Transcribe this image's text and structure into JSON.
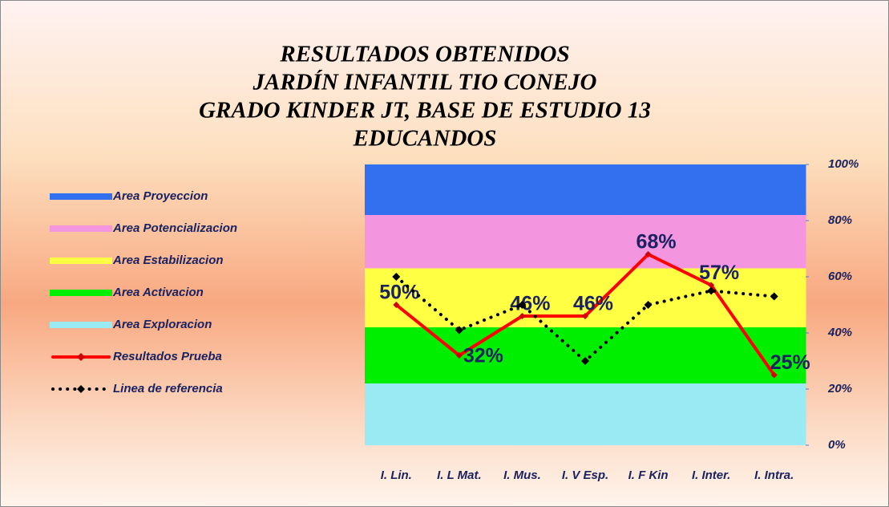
{
  "chart_data": {
    "type": "stacked-band-line",
    "title": [
      "RESULTADOS   OBTENIDOS",
      "JARDÍN INFANTIL  TIO CONEJO",
      "GRADO   KINDER JT,  BASE  DE  ESTUDIO  13",
      "EDUCANDOS"
    ],
    "categories": [
      "I. Lin.",
      "I. L Mat.",
      "I. Mus.",
      "I. V Esp.",
      "I. F Kin",
      "I. Inter.",
      "I. Intra."
    ],
    "ylim": [
      0,
      100
    ],
    "yticks": [
      {
        "value": 0,
        "label": "0%"
      },
      {
        "value": 20,
        "label": "20%"
      },
      {
        "value": 40,
        "label": "40%"
      },
      {
        "value": 60,
        "label": "60%"
      },
      {
        "value": 80,
        "label": "80%"
      },
      {
        "value": 100,
        "label": "100%"
      }
    ],
    "legend": "left",
    "series": [
      {
        "name": "Area Proyeccion",
        "kind": "band",
        "color": "#3370f0",
        "values": [
          18,
          18,
          18,
          18,
          18,
          18,
          18
        ]
      },
      {
        "name": "Area Potencializacion",
        "kind": "band",
        "color": "#f495e0",
        "values": [
          19,
          19,
          19,
          19,
          19,
          19,
          19
        ]
      },
      {
        "name": "Area Estabilizacion",
        "kind": "band",
        "color": "#ffff44",
        "values": [
          21,
          21,
          21,
          21,
          21,
          21,
          21
        ]
      },
      {
        "name": "Area Activacion",
        "kind": "band",
        "color": "#00ee00",
        "values": [
          20,
          20,
          20,
          20,
          20,
          20,
          20
        ]
      },
      {
        "name": "Area Exploracion",
        "kind": "band",
        "color": "#99eaf2",
        "values": [
          22,
          22,
          22,
          22,
          22,
          22,
          22
        ]
      },
      {
        "name": "Resultados Prueba",
        "kind": "line",
        "color": "#ff0000",
        "values": [
          50,
          32,
          46,
          46,
          68,
          57,
          25
        ],
        "value_labels": [
          "50%",
          "32%",
          "46%",
          "46%",
          "68%",
          "57%",
          "25%"
        ]
      },
      {
        "name": "Linea de referencia",
        "kind": "dotted",
        "color": "#000000",
        "values": [
          60,
          41,
          50,
          30,
          50,
          55,
          53
        ]
      }
    ]
  }
}
